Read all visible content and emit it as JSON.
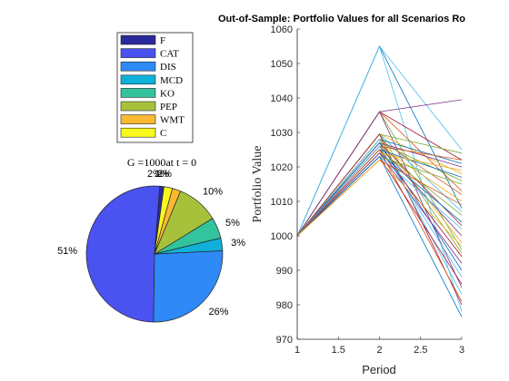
{
  "chart_data": [
    {
      "type": "pie",
      "title": "G =1000at t = 0",
      "legend": {
        "placement": "top",
        "entries": [
          "F",
          "CAT",
          "DIS",
          "MCD",
          "KO",
          "PEP",
          "WMT",
          "C"
        ]
      },
      "slices": [
        {
          "name": "F",
          "value": 0.01,
          "label": "",
          "color": "#2b2a9a"
        },
        {
          "name": "CAT",
          "value": 0.51,
          "label": "51%",
          "color": "#4a52f0"
        },
        {
          "name": "DIS",
          "value": 0.26,
          "label": "26%",
          "color": "#2f8af8"
        },
        {
          "name": "MCD",
          "value": 0.03,
          "label": "3%",
          "color": "#0fb1d9"
        },
        {
          "name": "KO",
          "value": 0.05,
          "label": "5%",
          "color": "#33c39d"
        },
        {
          "name": "PEP",
          "value": 0.1,
          "label": "10%",
          "color": "#a8c13b"
        },
        {
          "name": "WMT",
          "value": 0.02,
          "label": "2%",
          "color": "#fbb833"
        },
        {
          "name": "C",
          "value": 0.02,
          "label": "2%",
          "color": "#f8f81c"
        }
      ],
      "extra_labels": [
        "1%"
      ]
    },
    {
      "type": "line",
      "title": "Out-of-Sample: Portfolio Values for all Scenarios Ro",
      "xlabel": "Period",
      "ylabel": "Portfolio Value",
      "xlim": [
        1,
        3
      ],
      "ylim": [
        970,
        1060
      ],
      "xticks": [
        "1",
        "1.5",
        "2",
        "2.5",
        "3"
      ],
      "yticks": [
        "970",
        "980",
        "990",
        "1000",
        "1010",
        "1020",
        "1030",
        "1040",
        "1050",
        "1060"
      ],
      "grid": false,
      "x": [
        1,
        2,
        3
      ],
      "series": [
        {
          "color": "#4dbeee",
          "values": [
            1000,
            1055,
            1025
          ]
        },
        {
          "color": "#0072bd",
          "values": [
            1000,
            1055,
            1008
          ]
        },
        {
          "color": "#4dbeee",
          "values": [
            1000,
            1055,
            978
          ]
        },
        {
          "color": "#7e2f8e",
          "values": [
            1000,
            1036,
            1039.5
          ]
        },
        {
          "color": "#a2142f",
          "values": [
            1000,
            1036,
            1022
          ]
        },
        {
          "color": "#d95319",
          "values": [
            1000,
            1036,
            1013
          ]
        },
        {
          "color": "#77ac30",
          "values": [
            1000,
            1036,
            996
          ]
        },
        {
          "color": "#7e2f8e",
          "values": [
            1000,
            1036,
            985
          ]
        },
        {
          "color": "#77ac30",
          "values": [
            1000,
            1029.5,
            1024
          ]
        },
        {
          "color": "#edb120",
          "values": [
            1000,
            1029.5,
            1018
          ]
        },
        {
          "color": "#4dbeee",
          "values": [
            1000,
            1029.5,
            1007
          ]
        },
        {
          "color": "#77ac30",
          "values": [
            1000,
            1029.5,
            995
          ]
        },
        {
          "color": "#a2142f",
          "values": [
            1000,
            1029.5,
            980
          ]
        },
        {
          "color": "#0072bd",
          "values": [
            1000,
            1028,
            1021
          ]
        },
        {
          "color": "#d95319",
          "values": [
            1000,
            1028,
            1012
          ]
        },
        {
          "color": "#edb120",
          "values": [
            1000,
            1028,
            998
          ]
        },
        {
          "color": "#4dbeee",
          "values": [
            1000,
            1028,
            983
          ]
        },
        {
          "color": "#7e2f8e",
          "values": [
            1000,
            1027,
            1020
          ]
        },
        {
          "color": "#77ac30",
          "values": [
            1000,
            1027,
            1016
          ]
        },
        {
          "color": "#a2142f",
          "values": [
            1000,
            1027,
            1003
          ]
        },
        {
          "color": "#0072bd",
          "values": [
            1000,
            1027,
            990
          ]
        },
        {
          "color": "#d95319",
          "values": [
            1000,
            1026,
            1022
          ]
        },
        {
          "color": "#edb120",
          "values": [
            1000,
            1026,
            1010
          ]
        },
        {
          "color": "#7e2f8e",
          "values": [
            1000,
            1026,
            1000
          ]
        },
        {
          "color": "#4dbeee",
          "values": [
            1000,
            1026,
            988
          ]
        },
        {
          "color": "#0072bd",
          "values": [
            1000,
            1025,
            1017
          ]
        },
        {
          "color": "#77ac30",
          "values": [
            1000,
            1025,
            1006
          ]
        },
        {
          "color": "#a2142f",
          "values": [
            1000,
            1025,
            994
          ]
        },
        {
          "color": "#d95319",
          "values": [
            1000,
            1025,
            981
          ]
        },
        {
          "color": "#edb120",
          "values": [
            1000,
            1024,
            1019
          ]
        },
        {
          "color": "#0072bd",
          "values": [
            1000,
            1024,
            1004
          ]
        },
        {
          "color": "#7e2f8e",
          "values": [
            1000,
            1024,
            992
          ]
        },
        {
          "color": "#77ac30",
          "values": [
            1000,
            1023,
            1015
          ]
        },
        {
          "color": "#4dbeee",
          "values": [
            1000,
            1023,
            1002
          ]
        },
        {
          "color": "#a2142f",
          "values": [
            1000,
            1023,
            986
          ]
        },
        {
          "color": "#0072bd",
          "values": [
            1000,
            1023,
            976.5
          ]
        },
        {
          "color": "#d95319",
          "values": [
            1000,
            1022,
            1009
          ]
        },
        {
          "color": "#edb120",
          "values": [
            1000,
            1022,
            997
          ]
        }
      ]
    }
  ]
}
